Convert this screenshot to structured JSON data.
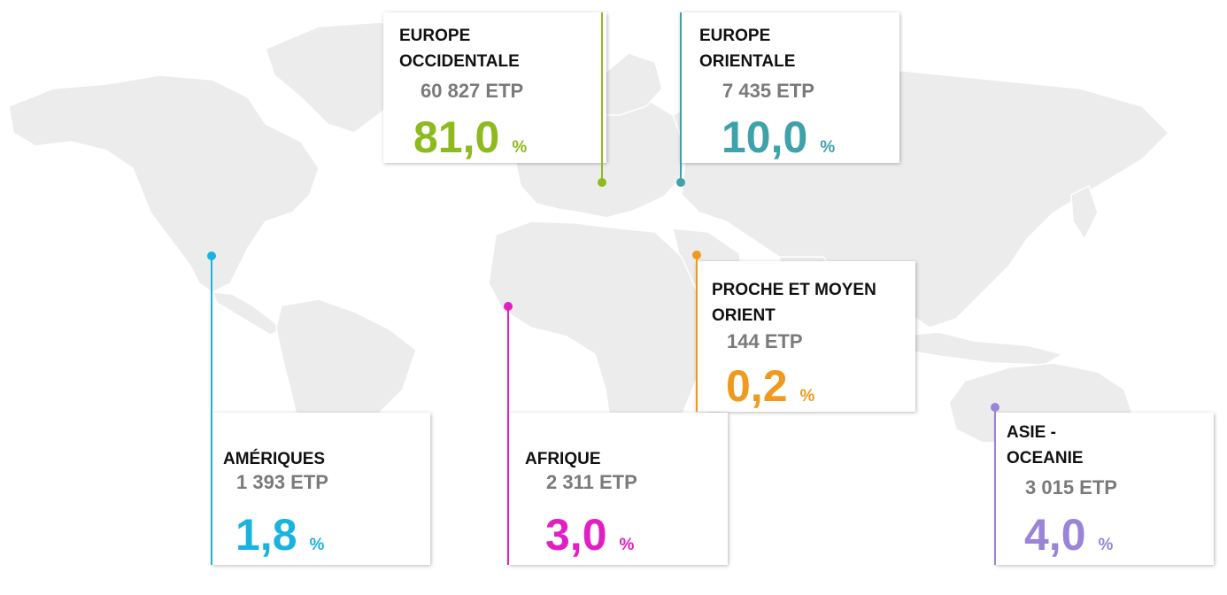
{
  "regions": {
    "europe_occidentale": {
      "name": "EUROPE OCCIDENTALE",
      "etp": "60 827 ETP",
      "value": "81,0",
      "unit": "%",
      "color": "#8dba1f"
    },
    "europe_orientale": {
      "name": "EUROPE ORIENTALE",
      "etp": "7 435 ETP",
      "value": "10,0",
      "unit": "%",
      "color": "#3fa2aa"
    },
    "proche_moyen_orient": {
      "name": "PROCHE ET MOYEN ORIENT",
      "etp": "144 ETP",
      "value": "0,2",
      "unit": "%",
      "color": "#ef9a1c"
    },
    "ameriques": {
      "name": "AMÉRIQUES",
      "etp": "1 393 ETP",
      "value": "1,8",
      "unit": "%",
      "color": "#1ab3e0"
    },
    "afrique": {
      "name": "AFRIQUE",
      "etp": "2 311 ETP",
      "value": "3,0",
      "unit": "%",
      "color": "#e21fc3"
    },
    "asie_oceanie": {
      "name": "ASIE - OCEANIE",
      "etp": "3 015 ETP",
      "value": "4,0",
      "unit": "%",
      "color": "#9a84d8"
    }
  },
  "map": {
    "land_color": "#ececec"
  }
}
